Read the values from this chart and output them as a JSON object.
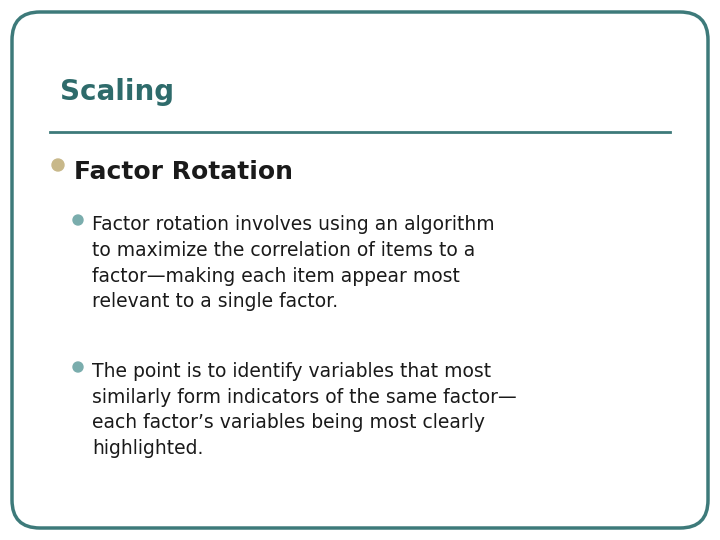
{
  "title": "Scaling",
  "title_color": "#2E6B6B",
  "background_color": "#FFFFFF",
  "border_color": "#3D7A7A",
  "separator_color": "#3D7A7A",
  "bullet1_text": "Factor Rotation",
  "bullet1_color": "#C8B88A",
  "sub_bullet_color": "#7AADAD",
  "sub_bullet1_line1": "Factor rotation involves using an algorithm",
  "sub_bullet1_line2": "to maximize the correlation of items to a",
  "sub_bullet1_line3": "factor—making each item appear most",
  "sub_bullet1_line4": "relevant to a single factor.",
  "sub_bullet2_line1": "The point is to identify variables that most",
  "sub_bullet2_line2": "similarly form indicators of the same factor—",
  "sub_bullet2_line3": "each factor’s variables being most clearly",
  "sub_bullet2_line4": "highlighted.",
  "title_fontsize": 20,
  "bullet1_fontsize": 18,
  "sub_bullet_fontsize": 13.5
}
